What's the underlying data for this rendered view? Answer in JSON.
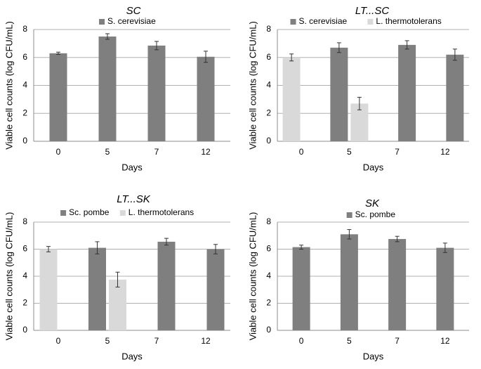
{
  "colors": {
    "series_dark": "#7f7f7f",
    "series_light": "#d9d9d9",
    "gridline": "#b0b0b0",
    "axis": "#8c8c8c"
  },
  "chart_data": [
    {
      "type": "bar",
      "title": "SC",
      "xlabel": "Days",
      "ylabel": "Viable cell counts (log CFU/mL)",
      "categories": [
        "0",
        "5",
        "7",
        "12"
      ],
      "ylim": [
        0,
        8
      ],
      "yticks": [
        0,
        2,
        4,
        6,
        8
      ],
      "grid": true,
      "legend_position": "top",
      "series": [
        {
          "name": "S. cerevisiae",
          "color": "#7f7f7f",
          "values": [
            6.3,
            7.5,
            6.85,
            6.05
          ],
          "errors": [
            0.08,
            0.2,
            0.3,
            0.4
          ]
        }
      ]
    },
    {
      "type": "bar",
      "title": "LT...SC",
      "xlabel": "Days",
      "ylabel": "Viable cell counts (log CFU/mL)",
      "categories": [
        "0",
        "5",
        "7",
        "12"
      ],
      "ylim": [
        0,
        8
      ],
      "yticks": [
        0,
        2,
        4,
        6,
        8
      ],
      "grid": true,
      "legend_position": "top",
      "series": [
        {
          "name": "S. cerevisiae",
          "color": "#7f7f7f",
          "values": [
            null,
            6.7,
            6.9,
            6.2
          ],
          "errors": [
            null,
            0.35,
            0.3,
            0.4
          ]
        },
        {
          "name": "L. thermotolerans",
          "color": "#d9d9d9",
          "values": [
            6.0,
            2.7,
            null,
            null
          ],
          "errors": [
            0.25,
            0.45,
            null,
            null
          ]
        }
      ]
    },
    {
      "type": "bar",
      "title": "LT...SK",
      "xlabel": "Days",
      "ylabel": "Viable cell counts (log CFU/mL)",
      "categories": [
        "0",
        "5",
        "7",
        "12"
      ],
      "ylim": [
        0,
        8
      ],
      "yticks": [
        0,
        2,
        4,
        6,
        8
      ],
      "grid": true,
      "legend_position": "top",
      "series": [
        {
          "name": "Sc. pombe",
          "color": "#7f7f7f",
          "values": [
            null,
            6.1,
            6.55,
            6.0
          ],
          "errors": [
            null,
            0.45,
            0.25,
            0.35
          ]
        },
        {
          "name": "L. thermotolerans",
          "color": "#d9d9d9",
          "values": [
            6.0,
            3.75,
            null,
            null
          ],
          "errors": [
            0.2,
            0.55,
            null,
            null
          ]
        }
      ]
    },
    {
      "type": "bar",
      "title": "SK",
      "xlabel": "Days",
      "ylabel": "Viable cell counts (log CFU/mL)",
      "categories": [
        "0",
        "5",
        "7",
        "12"
      ],
      "ylim": [
        0,
        8
      ],
      "yticks": [
        0,
        2,
        4,
        6,
        8
      ],
      "grid": true,
      "legend_position": "top",
      "series": [
        {
          "name": "Sc. pombe",
          "color": "#7f7f7f",
          "values": [
            6.15,
            7.1,
            6.75,
            6.1
          ],
          "errors": [
            0.15,
            0.35,
            0.2,
            0.35
          ]
        }
      ]
    }
  ]
}
